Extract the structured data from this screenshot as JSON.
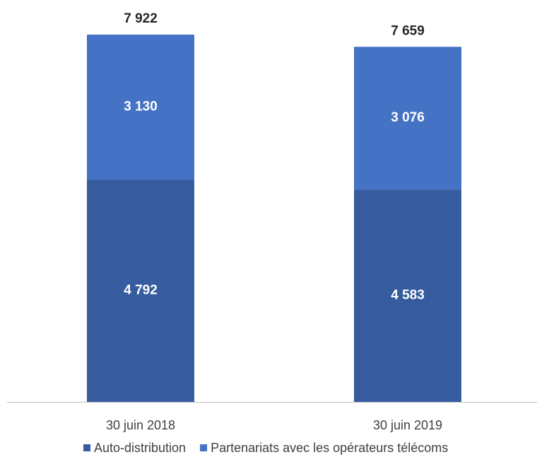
{
  "chart_data": {
    "type": "stacked_bar",
    "categories": [
      "30 juin 2018",
      "30 juin 2019"
    ],
    "series": [
      {
        "name": "Auto-distribution",
        "color": "#365c9f",
        "values": [
          4792,
          4583
        ],
        "value_labels": [
          "4 792",
          "4 583"
        ]
      },
      {
        "name": "Partenariats avec les opérateurs télécoms",
        "color": "#4472c4",
        "values": [
          3130,
          3076
        ],
        "value_labels": [
          "3 130",
          "3 076"
        ]
      }
    ],
    "totals": [
      7922,
      7659
    ],
    "total_labels": [
      "7 922",
      "7 659"
    ]
  }
}
